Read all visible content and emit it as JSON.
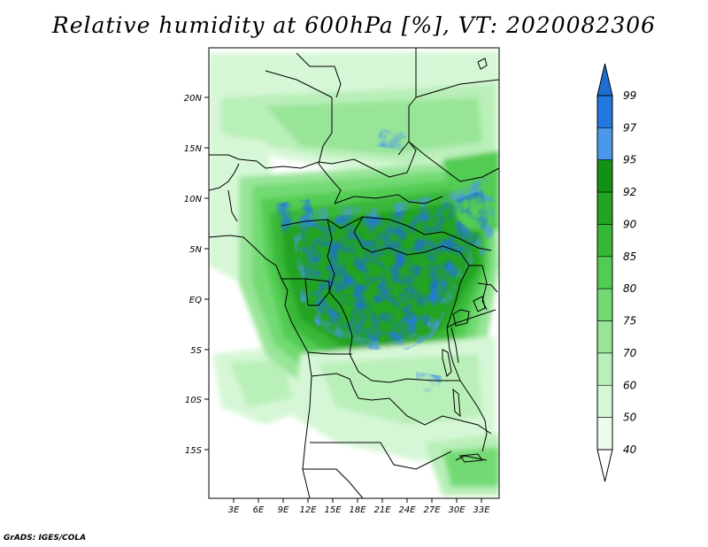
{
  "title": "Relative humidity at 600hPa [%], VT: 2020082306",
  "credit": "GrADS: IGES/COLA",
  "map": {
    "lat_labels": [
      "20N",
      "15N",
      "10N",
      "5N",
      "EQ",
      "5S",
      "10S",
      "15S"
    ],
    "lon_labels": [
      "3E",
      "6E",
      "9E",
      "12E",
      "15E",
      "18E",
      "21E",
      "24E",
      "27E",
      "30E",
      "33E"
    ]
  },
  "colorbar": {
    "labels": [
      "99",
      "97",
      "95",
      "92",
      "90",
      "85",
      "80",
      "75",
      "70",
      "60",
      "50",
      "40"
    ],
    "colors": [
      "#1e6fd1",
      "#2378de",
      "#4b97ea",
      "#129115",
      "#22a322",
      "#37b737",
      "#52cc52",
      "#73da73",
      "#98e598",
      "#b9efb9",
      "#d6f7d6",
      "#ecfcec",
      "#ffffff"
    ]
  }
}
